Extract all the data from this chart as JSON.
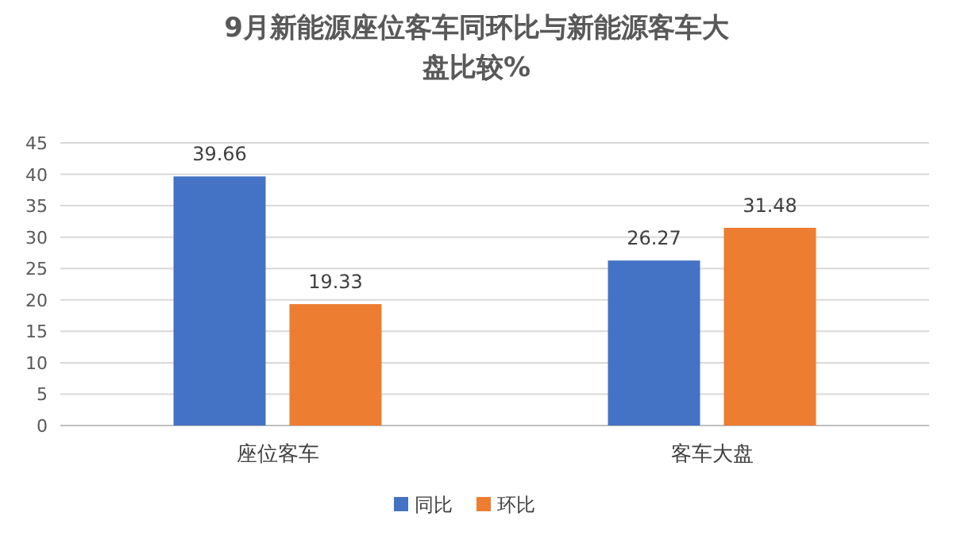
{
  "chart_data": {
    "type": "bar",
    "title": "9月新能源座位客车同环比与新能源客车大盘比较%",
    "categories": [
      "座位客车",
      "客车大盘"
    ],
    "series": [
      {
        "name": "同比",
        "color": "#4472c4",
        "values": [
          39.66,
          26.27
        ]
      },
      {
        "name": "环比",
        "color": "#ed7d31",
        "values": [
          19.33,
          31.48
        ]
      }
    ],
    "ylim": [
      0,
      45
    ],
    "yticks": [
      0,
      5,
      10,
      15,
      20,
      25,
      30,
      35,
      40,
      45
    ],
    "grid": "y",
    "legend": "bottom",
    "data_labels": true
  }
}
